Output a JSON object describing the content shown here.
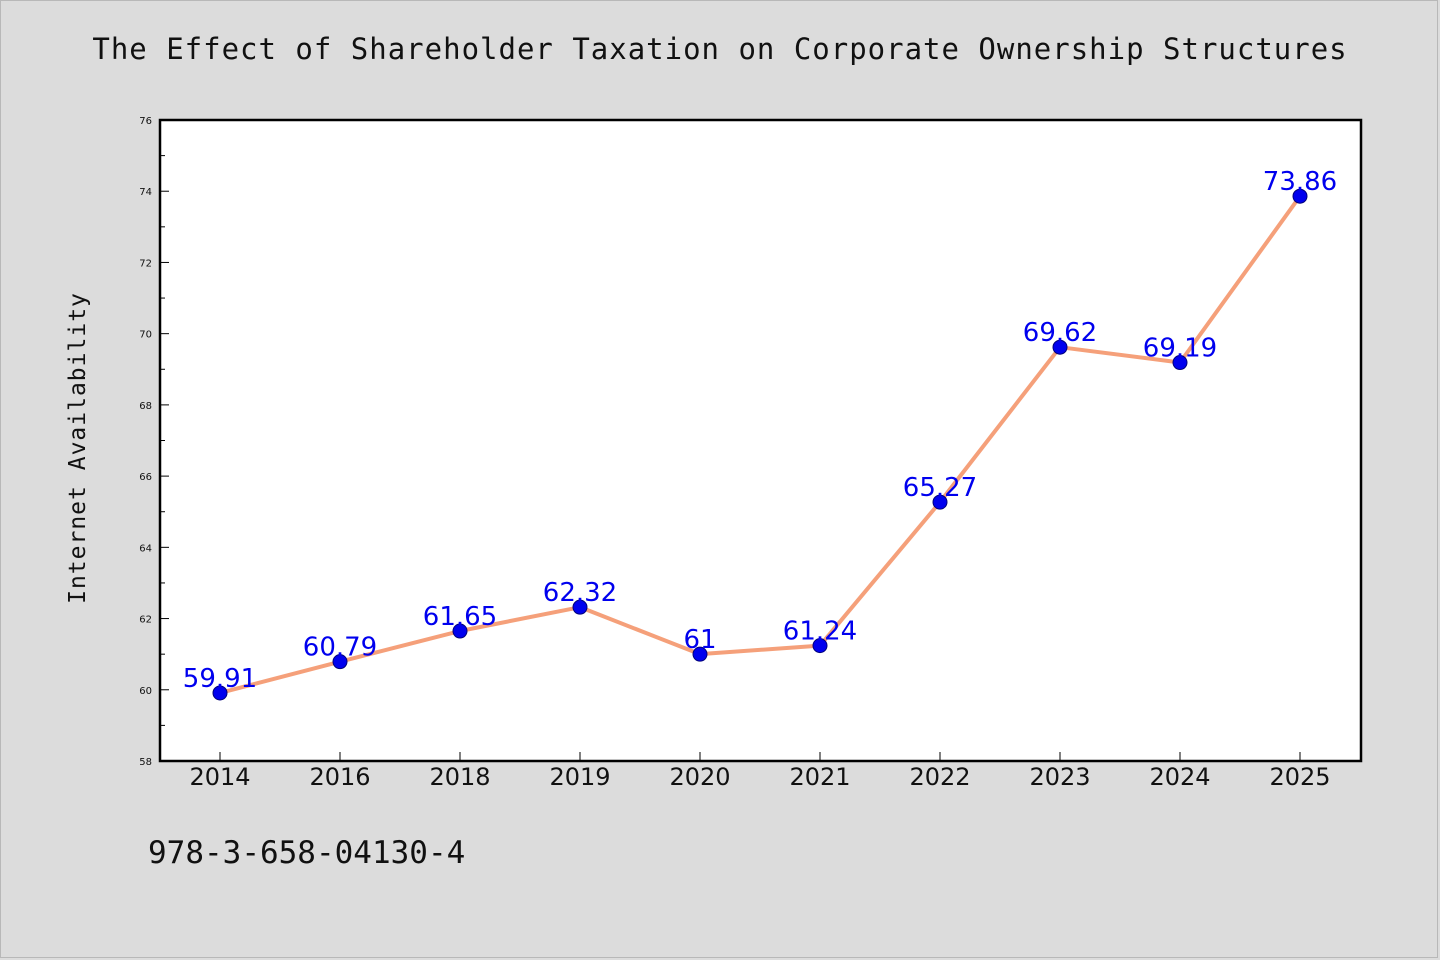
{
  "chart_data": {
    "type": "line",
    "title": "The Effect of Shareholder Taxation on Corporate Ownership Structures",
    "ylabel": "Internet Availability",
    "xlabel": "",
    "categories": [
      "2014",
      "2016",
      "2018",
      "2019",
      "2020",
      "2021",
      "2022",
      "2023",
      "2024",
      "2025"
    ],
    "values": [
      59.91,
      60.79,
      61.65,
      62.32,
      61,
      61.24,
      65.27,
      69.62,
      69.19,
      73.86
    ],
    "data_labels": [
      "59.91",
      "60.79",
      "61.65",
      "62.32",
      "61",
      "61.24",
      "65.27",
      "69.62",
      "69.19",
      "73.86"
    ],
    "ylim": [
      58,
      76
    ],
    "yticks": [
      58,
      60,
      62,
      64,
      66,
      68,
      70,
      72,
      74,
      76
    ],
    "grid": false,
    "legend": "none",
    "colors": {
      "line": "#f5a07a",
      "marker": "#0000ee",
      "label": "#0000ee",
      "background": "#dcdcdc",
      "plot": "#ffffff"
    }
  },
  "footer_text": "978-3-658-04130-4"
}
